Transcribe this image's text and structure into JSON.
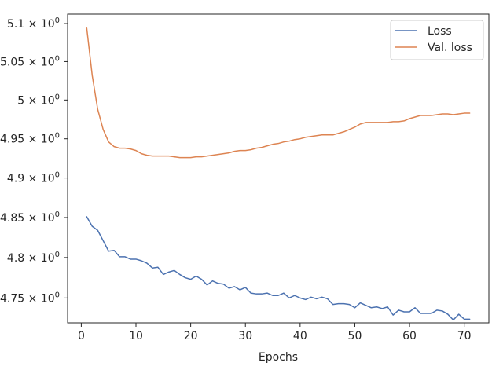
{
  "chart_data": {
    "type": "line",
    "xlabel": "Epochs",
    "ylabel": "",
    "xlim": [
      -2.5,
      74.5
    ],
    "ylim": [
      4.7195,
      5.1125
    ],
    "yscale": "log",
    "grid": false,
    "legend_position": "top-right",
    "x_ticks": [
      0,
      10,
      20,
      30,
      40,
      50,
      60,
      70
    ],
    "x_tick_labels": [
      "0",
      "10",
      "20",
      "30",
      "40",
      "50",
      "60",
      "70"
    ],
    "y_ticks": [
      4.75,
      4.8,
      4.85,
      4.9,
      4.95,
      5.0,
      5.05,
      5.1
    ],
    "y_tick_labels": [
      {
        "mant": "4.75",
        "exp": "0"
      },
      {
        "mant": "4.8",
        "exp": "0"
      },
      {
        "mant": "4.85",
        "exp": "0"
      },
      {
        "mant": "4.9",
        "exp": "0"
      },
      {
        "mant": "4.95",
        "exp": "0"
      },
      {
        "mant": "5",
        "exp": "0"
      },
      {
        "mant": "5.05",
        "exp": "0"
      },
      {
        "mant": "5.1",
        "exp": "0"
      }
    ],
    "x": [
      1,
      2,
      3,
      4,
      5,
      6,
      7,
      8,
      9,
      10,
      11,
      12,
      13,
      14,
      15,
      16,
      17,
      18,
      19,
      20,
      21,
      22,
      23,
      24,
      25,
      26,
      27,
      28,
      29,
      30,
      31,
      32,
      33,
      34,
      35,
      36,
      37,
      38,
      39,
      40,
      41,
      42,
      43,
      44,
      45,
      46,
      47,
      48,
      49,
      50,
      51,
      52,
      53,
      54,
      55,
      56,
      57,
      58,
      59,
      60,
      61,
      62,
      63,
      64,
      65,
      66,
      67,
      68,
      69,
      70,
      71
    ],
    "series": [
      {
        "name": "Loss",
        "color": "#4c72b0",
        "values": [
          4.851,
          4.839,
          4.834,
          4.821,
          4.808,
          4.809,
          4.801,
          4.801,
          4.798,
          4.798,
          4.796,
          4.793,
          4.787,
          4.788,
          4.779,
          4.782,
          4.784,
          4.779,
          4.775,
          4.773,
          4.777,
          4.773,
          4.766,
          4.771,
          4.768,
          4.767,
          4.762,
          4.764,
          4.76,
          4.763,
          4.756,
          4.755,
          4.755,
          4.756,
          4.753,
          4.753,
          4.756,
          4.75,
          4.753,
          4.75,
          4.748,
          4.751,
          4.749,
          4.751,
          4.749,
          4.742,
          4.743,
          4.743,
          4.742,
          4.738,
          4.744,
          4.741,
          4.738,
          4.739,
          4.737,
          4.739,
          4.729,
          4.735,
          4.733,
          4.733,
          4.738,
          4.731,
          4.731,
          4.731,
          4.735,
          4.734,
          4.73,
          4.723,
          4.73,
          4.724,
          4.724
        ]
      },
      {
        "name": "Val. loss",
        "color": "#dd8452",
        "values": [
          5.094,
          5.032,
          4.988,
          4.962,
          4.946,
          4.94,
          4.938,
          4.938,
          4.937,
          4.935,
          4.931,
          4.929,
          4.928,
          4.928,
          4.928,
          4.928,
          4.927,
          4.926,
          4.926,
          4.926,
          4.927,
          4.927,
          4.928,
          4.929,
          4.93,
          4.931,
          4.932,
          4.934,
          4.935,
          4.935,
          4.936,
          4.938,
          4.939,
          4.941,
          4.943,
          4.944,
          4.946,
          4.947,
          4.949,
          4.95,
          4.952,
          4.953,
          4.954,
          4.955,
          4.955,
          4.955,
          4.957,
          4.959,
          4.962,
          4.965,
          4.969,
          4.971,
          4.971,
          4.971,
          4.971,
          4.971,
          4.972,
          4.972,
          4.973,
          4.976,
          4.978,
          4.98,
          4.98,
          4.98,
          4.981,
          4.982,
          4.982,
          4.981,
          4.982,
          4.983,
          4.983
        ]
      }
    ]
  }
}
